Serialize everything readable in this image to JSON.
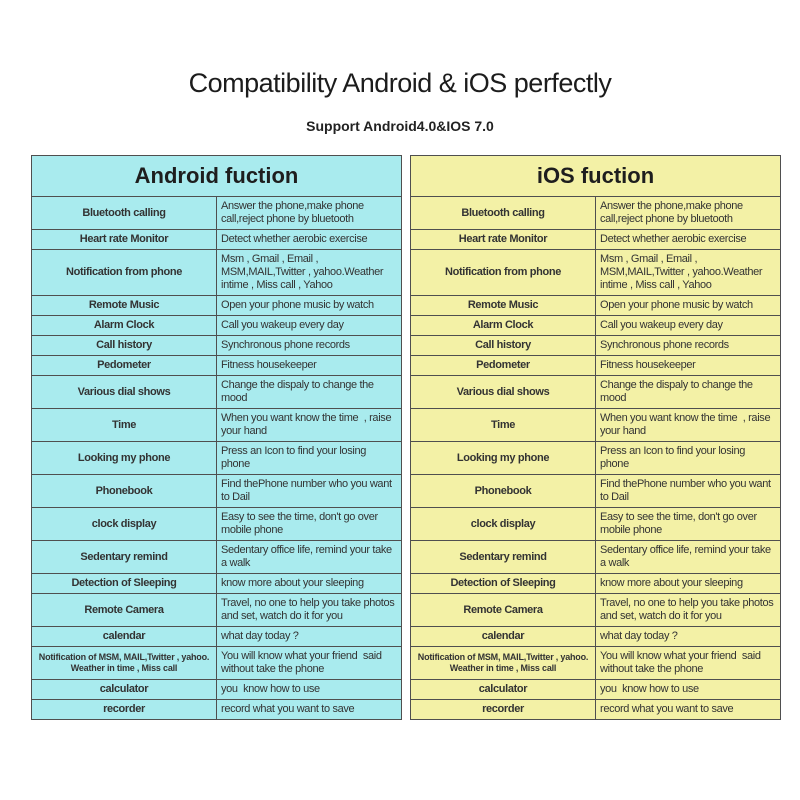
{
  "page": {
    "title": "Compatibility Android & iOS perfectly",
    "subtitle": "Support Android4.0&IOS 7.0"
  },
  "colors": {
    "android_bg": "#a9ebee",
    "ios_bg": "#f3f1a6",
    "border": "#4f4f4f",
    "text": "#333333"
  },
  "tables": [
    {
      "id": "android",
      "header": "Android fuction",
      "rows": [
        {
          "feature": "Bluetooth calling",
          "description": "Answer the phone,make phone call,reject phone by bluetooth"
        },
        {
          "feature": "Heart rate Monitor",
          "description": "Detect whether aerobic exercise"
        },
        {
          "feature": "Notification from phone",
          "description": "Msm , Gmail , Email , MSM,MAIL,Twitter , yahoo.Weather intime , Miss call , Yahoo"
        },
        {
          "feature": "Remote Music",
          "description": "Open your phone music by watch"
        },
        {
          "feature": "Alarm Clock",
          "description": "Call you wakeup every day"
        },
        {
          "feature": "Call history",
          "description": "Synchronous phone records"
        },
        {
          "feature": "Pedometer",
          "description": "Fitness housekeeper"
        },
        {
          "feature": "Various dial shows",
          "description": "Change the dispaly to change the mood"
        },
        {
          "feature": "Time",
          "description": "When you want know the time  , raise your hand"
        },
        {
          "feature": "Looking my phone",
          "description": "Press an Icon to find your losing phone"
        },
        {
          "feature": "Phonebook",
          "description": "Find thePhone number who you want to Dail"
        },
        {
          "feature": "clock display",
          "description": "Easy to see the time, don't go over mobile phone"
        },
        {
          "feature": "Sedentary remind",
          "description": "Sedentary office life, remind your take a walk"
        },
        {
          "feature": "Detection of Sleeping",
          "description": "know more about your sleeping"
        },
        {
          "feature": "Remote Camera",
          "description": "Travel, no one to help you take photos and set, watch do it for you"
        },
        {
          "feature": "calendar",
          "description": "what day today ?"
        },
        {
          "feature": "Notification of MSM, MAIL,Twitter , yahoo. Weather in time , Miss call",
          "description": "You will know what your friend  said without take the phone"
        },
        {
          "feature": "calculator",
          "description": "you  know how to use"
        },
        {
          "feature": "recorder",
          "description": "record what you want to save"
        }
      ]
    },
    {
      "id": "ios",
      "header": "iOS fuction",
      "rows": [
        {
          "feature": "Bluetooth calling",
          "description": "Answer the phone,make phone call,reject phone by bluetooth"
        },
        {
          "feature": "Heart rate Monitor",
          "description": "Detect whether aerobic exercise"
        },
        {
          "feature": "Notification from phone",
          "description": "Msm , Gmail , Email , MSM,MAIL,Twitter , yahoo.Weather intime , Miss call , Yahoo"
        },
        {
          "feature": "Remote Music",
          "description": "Open your phone music by watch"
        },
        {
          "feature": "Alarm Clock",
          "description": "Call you wakeup every day"
        },
        {
          "feature": "Call history",
          "description": "Synchronous phone records"
        },
        {
          "feature": "Pedometer",
          "description": "Fitness housekeeper"
        },
        {
          "feature": "Various dial shows",
          "description": "Change the dispaly to change the mood"
        },
        {
          "feature": "Time",
          "description": "When you want know the time  , raise your hand"
        },
        {
          "feature": "Looking my phone",
          "description": "Press an Icon to find your losing phone"
        },
        {
          "feature": "Phonebook",
          "description": "Find thePhone number who you want to Dail"
        },
        {
          "feature": "clock display",
          "description": "Easy to see the time, don't go over mobile phone"
        },
        {
          "feature": "Sedentary remind",
          "description": "Sedentary office life, remind your take a walk"
        },
        {
          "feature": "Detection of Sleeping",
          "description": "know more about your sleeping"
        },
        {
          "feature": "Remote Camera",
          "description": "Travel, no one to help you take photos and set, watch do it for you"
        },
        {
          "feature": "calendar",
          "description": "what day today ?"
        },
        {
          "feature": "Notification of MSM, MAIL,Twitter , yahoo. Weather in time , Miss call",
          "description": "You will know what your friend  said without take the phone"
        },
        {
          "feature": "calculator",
          "description": "you  know how to use"
        },
        {
          "feature": "recorder",
          "description": "record what you want to save"
        }
      ]
    }
  ]
}
